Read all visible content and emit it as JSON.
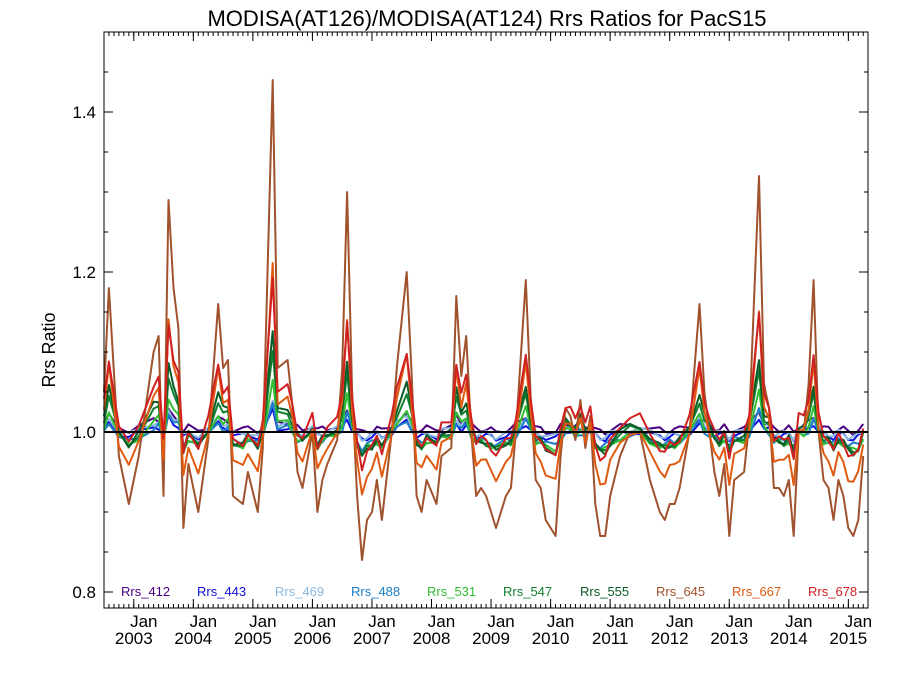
{
  "chart_data": {
    "type": "line",
    "title": "MODISA(AT126)/MODISA(AT124)  Rrs Ratios for PacS15",
    "xlabel": "",
    "ylabel": "Rrs Ratio",
    "xlim": [
      2002.5,
      2015.33
    ],
    "ylim": [
      0.78,
      1.5
    ],
    "y_ticks": [
      0.8,
      1.0,
      1.2,
      1.4
    ],
    "y_tick_labels": [
      "0.8",
      "1.0",
      "1.2",
      "1.4"
    ],
    "x_ticks": [
      {
        "x": 2003,
        "month": "Jan",
        "year": "2003"
      },
      {
        "x": 2004,
        "month": "Jan",
        "year": "2004"
      },
      {
        "x": 2005,
        "month": "Jan",
        "year": "2005"
      },
      {
        "x": 2006,
        "month": "Jan",
        "year": "2006"
      },
      {
        "x": 2007,
        "month": "Jan",
        "year": "2007"
      },
      {
        "x": 2008,
        "month": "Jan",
        "year": "2008"
      },
      {
        "x": 2009,
        "month": "Jan",
        "year": "2009"
      },
      {
        "x": 2010,
        "month": "Jan",
        "year": "2010"
      },
      {
        "x": 2011,
        "month": "Jan",
        "year": "2011"
      },
      {
        "x": 2012,
        "month": "Jan",
        "year": "2012"
      },
      {
        "x": 2013,
        "month": "Jan",
        "year": "2013"
      },
      {
        "x": 2014,
        "month": "Jan",
        "year": "2014"
      },
      {
        "x": 2015,
        "month": "Jan",
        "year": "2015"
      }
    ],
    "reference_line": 1.0,
    "grid": false,
    "legend_position": "bottom",
    "month_starts": [
      2002.5,
      2002.583,
      2002.667,
      2002.75,
      2002.833,
      2002.917,
      2003.0,
      2003.083,
      2003.167,
      2003.25,
      2003.333,
      2003.417,
      2003.5,
      2003.583,
      2003.667,
      2003.75,
      2003.833,
      2003.917,
      2004.0,
      2004.083,
      2004.167,
      2004.25,
      2004.333,
      2004.417,
      2004.5,
      2004.583,
      2004.667,
      2004.75,
      2004.833,
      2004.917,
      2005.0,
      2005.083,
      2005.167,
      2005.25,
      2005.333,
      2005.417,
      2005.5,
      2005.583,
      2005.667,
      2005.75,
      2005.833,
      2005.917,
      2006.0,
      2006.083,
      2006.167,
      2006.25,
      2006.333,
      2006.417,
      2006.5,
      2006.583,
      2006.667,
      2006.75,
      2006.833,
      2006.917,
      2007.0,
      2007.083,
      2007.167,
      2007.25,
      2007.333,
      2007.417,
      2007.5,
      2007.583,
      2007.667,
      2007.75,
      2007.833,
      2007.917,
      2008.0,
      2008.083,
      2008.167,
      2008.25,
      2008.333,
      2008.417,
      2008.5,
      2008.583,
      2008.667,
      2008.75,
      2008.833,
      2008.917,
      2009.0,
      2009.083,
      2009.167,
      2009.25,
      2009.333,
      2009.417,
      2009.5,
      2009.583,
      2009.667,
      2009.75,
      2009.833,
      2009.917,
      2010.0,
      2010.083,
      2010.167,
      2010.25,
      2010.333,
      2010.417,
      2010.5,
      2010.583,
      2010.667,
      2010.75,
      2010.833,
      2010.917,
      2011.0,
      2011.083,
      2011.167,
      2011.25,
      2011.333,
      2011.417,
      2011.5,
      2011.583,
      2011.667,
      2011.75,
      2011.833,
      2011.917,
      2012.0,
      2012.083,
      2012.167,
      2012.25,
      2012.333,
      2012.417,
      2012.5,
      2012.583,
      2012.667,
      2012.75,
      2012.833,
      2012.917,
      2013.0,
      2013.083,
      2013.167,
      2013.25,
      2013.333,
      2013.417,
      2013.5,
      2013.583,
      2013.667,
      2013.75,
      2013.833,
      2013.917,
      2014.0,
      2014.083,
      2014.167,
      2014.25,
      2014.333,
      2014.417,
      2014.5,
      2014.583,
      2014.667,
      2014.75,
      2014.833,
      2014.917,
      2015.0,
      2015.083,
      2015.167,
      2015.25
    ],
    "peak_anchors": [
      [
        2002.5,
        1.05
      ],
      [
        2002.583,
        1.18
      ],
      [
        2002.75,
        0.97
      ],
      [
        2002.917,
        0.91
      ],
      [
        2003.083,
        0.97
      ],
      [
        2003.333,
        1.1
      ],
      [
        2003.417,
        1.12
      ],
      [
        2003.5,
        0.92
      ],
      [
        2003.583,
        1.29
      ],
      [
        2003.667,
        1.18
      ],
      [
        2003.75,
        1.13
      ],
      [
        2003.833,
        0.88
      ],
      [
        2003.917,
        0.96
      ],
      [
        2004.083,
        0.9
      ],
      [
        2004.25,
        0.99
      ],
      [
        2004.417,
        1.16
      ],
      [
        2004.5,
        1.08
      ],
      [
        2004.583,
        1.09
      ],
      [
        2004.667,
        0.92
      ],
      [
        2004.833,
        0.91
      ],
      [
        2004.917,
        0.95
      ],
      [
        2005.083,
        0.9
      ],
      [
        2005.167,
        0.98
      ],
      [
        2005.333,
        1.44
      ],
      [
        2005.417,
        1.08
      ],
      [
        2005.583,
        1.09
      ],
      [
        2005.667,
        1.03
      ],
      [
        2005.75,
        0.95
      ],
      [
        2005.833,
        0.93
      ],
      [
        2006.0,
        1.0
      ],
      [
        2006.083,
        0.9
      ],
      [
        2006.167,
        0.94
      ],
      [
        2006.25,
        0.96
      ],
      [
        2006.417,
        0.99
      ],
      [
        2006.5,
        1.08
      ],
      [
        2006.583,
        1.3
      ],
      [
        2006.667,
        1.05
      ],
      [
        2006.75,
        0.92
      ],
      [
        2006.833,
        0.84
      ],
      [
        2006.917,
        0.89
      ],
      [
        2007.0,
        0.9
      ],
      [
        2007.083,
        0.94
      ],
      [
        2007.167,
        0.89
      ],
      [
        2007.333,
        1.0
      ],
      [
        2007.417,
        1.08
      ],
      [
        2007.583,
        1.2
      ],
      [
        2007.667,
        1.07
      ],
      [
        2007.75,
        0.92
      ],
      [
        2007.833,
        0.9
      ],
      [
        2007.917,
        0.94
      ],
      [
        2008.083,
        0.91
      ],
      [
        2008.167,
        0.97
      ],
      [
        2008.333,
        0.98
      ],
      [
        2008.417,
        1.17
      ],
      [
        2008.5,
        1.07
      ],
      [
        2008.583,
        1.12
      ],
      [
        2008.667,
        1.0
      ],
      [
        2008.75,
        0.92
      ],
      [
        2008.833,
        0.93
      ],
      [
        2008.917,
        0.92
      ],
      [
        2009.0,
        0.9
      ],
      [
        2009.083,
        0.88
      ],
      [
        2009.25,
        0.92
      ],
      [
        2009.333,
        0.93
      ],
      [
        2009.417,
        1.0
      ],
      [
        2009.583,
        1.19
      ],
      [
        2009.667,
        1.04
      ],
      [
        2009.75,
        0.94
      ],
      [
        2009.833,
        0.93
      ],
      [
        2009.917,
        0.89
      ],
      [
        2010.083,
        0.87
      ],
      [
        2010.167,
        0.97
      ],
      [
        2010.25,
        1.03
      ],
      [
        2010.333,
        1.02
      ],
      [
        2010.417,
        0.99
      ],
      [
        2010.5,
        1.04
      ],
      [
        2010.583,
        0.98
      ],
      [
        2010.667,
        1.02
      ],
      [
        2010.75,
        0.91
      ],
      [
        2010.833,
        0.87
      ],
      [
        2010.917,
        0.87
      ],
      [
        2011.0,
        0.92
      ],
      [
        2011.167,
        0.97
      ],
      [
        2011.333,
        1.0
      ],
      [
        2011.5,
        1.0
      ],
      [
        2011.667,
        0.94
      ],
      [
        2011.833,
        0.9
      ],
      [
        2011.917,
        0.89
      ],
      [
        2012.0,
        0.91
      ],
      [
        2012.083,
        0.91
      ],
      [
        2012.167,
        0.93
      ],
      [
        2012.333,
        1.0
      ],
      [
        2012.5,
        1.16
      ],
      [
        2012.583,
        1.05
      ],
      [
        2012.667,
        1.0
      ],
      [
        2012.75,
        0.95
      ],
      [
        2012.833,
        0.92
      ],
      [
        2012.917,
        0.96
      ],
      [
        2013.0,
        0.87
      ],
      [
        2013.083,
        0.94
      ],
      [
        2013.25,
        0.95
      ],
      [
        2013.333,
        1.01
      ],
      [
        2013.5,
        1.32
      ],
      [
        2013.583,
        1.06
      ],
      [
        2013.667,
        1.03
      ],
      [
        2013.75,
        0.93
      ],
      [
        2013.833,
        0.93
      ],
      [
        2013.917,
        0.92
      ],
      [
        2014.0,
        0.94
      ],
      [
        2014.083,
        0.87
      ],
      [
        2014.167,
        1.0
      ],
      [
        2014.25,
        1.0
      ],
      [
        2014.333,
        1.06
      ],
      [
        2014.417,
        1.19
      ],
      [
        2014.5,
        1.0
      ],
      [
        2014.583,
        0.94
      ],
      [
        2014.667,
        0.93
      ],
      [
        2014.75,
        0.89
      ],
      [
        2014.833,
        0.94
      ],
      [
        2014.917,
        0.92
      ],
      [
        2015.0,
        0.88
      ],
      [
        2015.083,
        0.87
      ],
      [
        2015.167,
        0.89
      ],
      [
        2015.25,
        0.97
      ]
    ],
    "series": [
      {
        "name": "Rrs_412",
        "color": "#4b0082",
        "scale": 0.06,
        "offset": 0.008
      },
      {
        "name": "Rrs_443",
        "color": "#1010e0",
        "scale": 0.06,
        "offset": 0.0
      },
      {
        "name": "Rrs_469",
        "color": "#8ab8e0",
        "scale": 0.08,
        "offset": 0.004
      },
      {
        "name": "Rrs_488",
        "color": "#1c7ec8",
        "scale": 0.1,
        "offset": -0.004
      },
      {
        "name": "Rrs_531",
        "color": "#30c030",
        "scale": 0.16,
        "offset": -0.002
      },
      {
        "name": "Rrs_547",
        "color": "#108030",
        "scale": 0.22,
        "offset": 0.004
      },
      {
        "name": "Rrs_555",
        "color": "#0a5c28",
        "scale": 0.26,
        "offset": 0.008
      },
      {
        "name": "Rrs_645",
        "color": "#a0522d",
        "scale": 1.0,
        "offset": 0.0
      },
      {
        "name": "Rrs_667",
        "color": "#e05a10",
        "scale": 0.48,
        "offset": 0.0
      },
      {
        "name": "Rrs_678",
        "color": "#d02020",
        "scale": 0.4,
        "offset": 0.02
      }
    ]
  }
}
